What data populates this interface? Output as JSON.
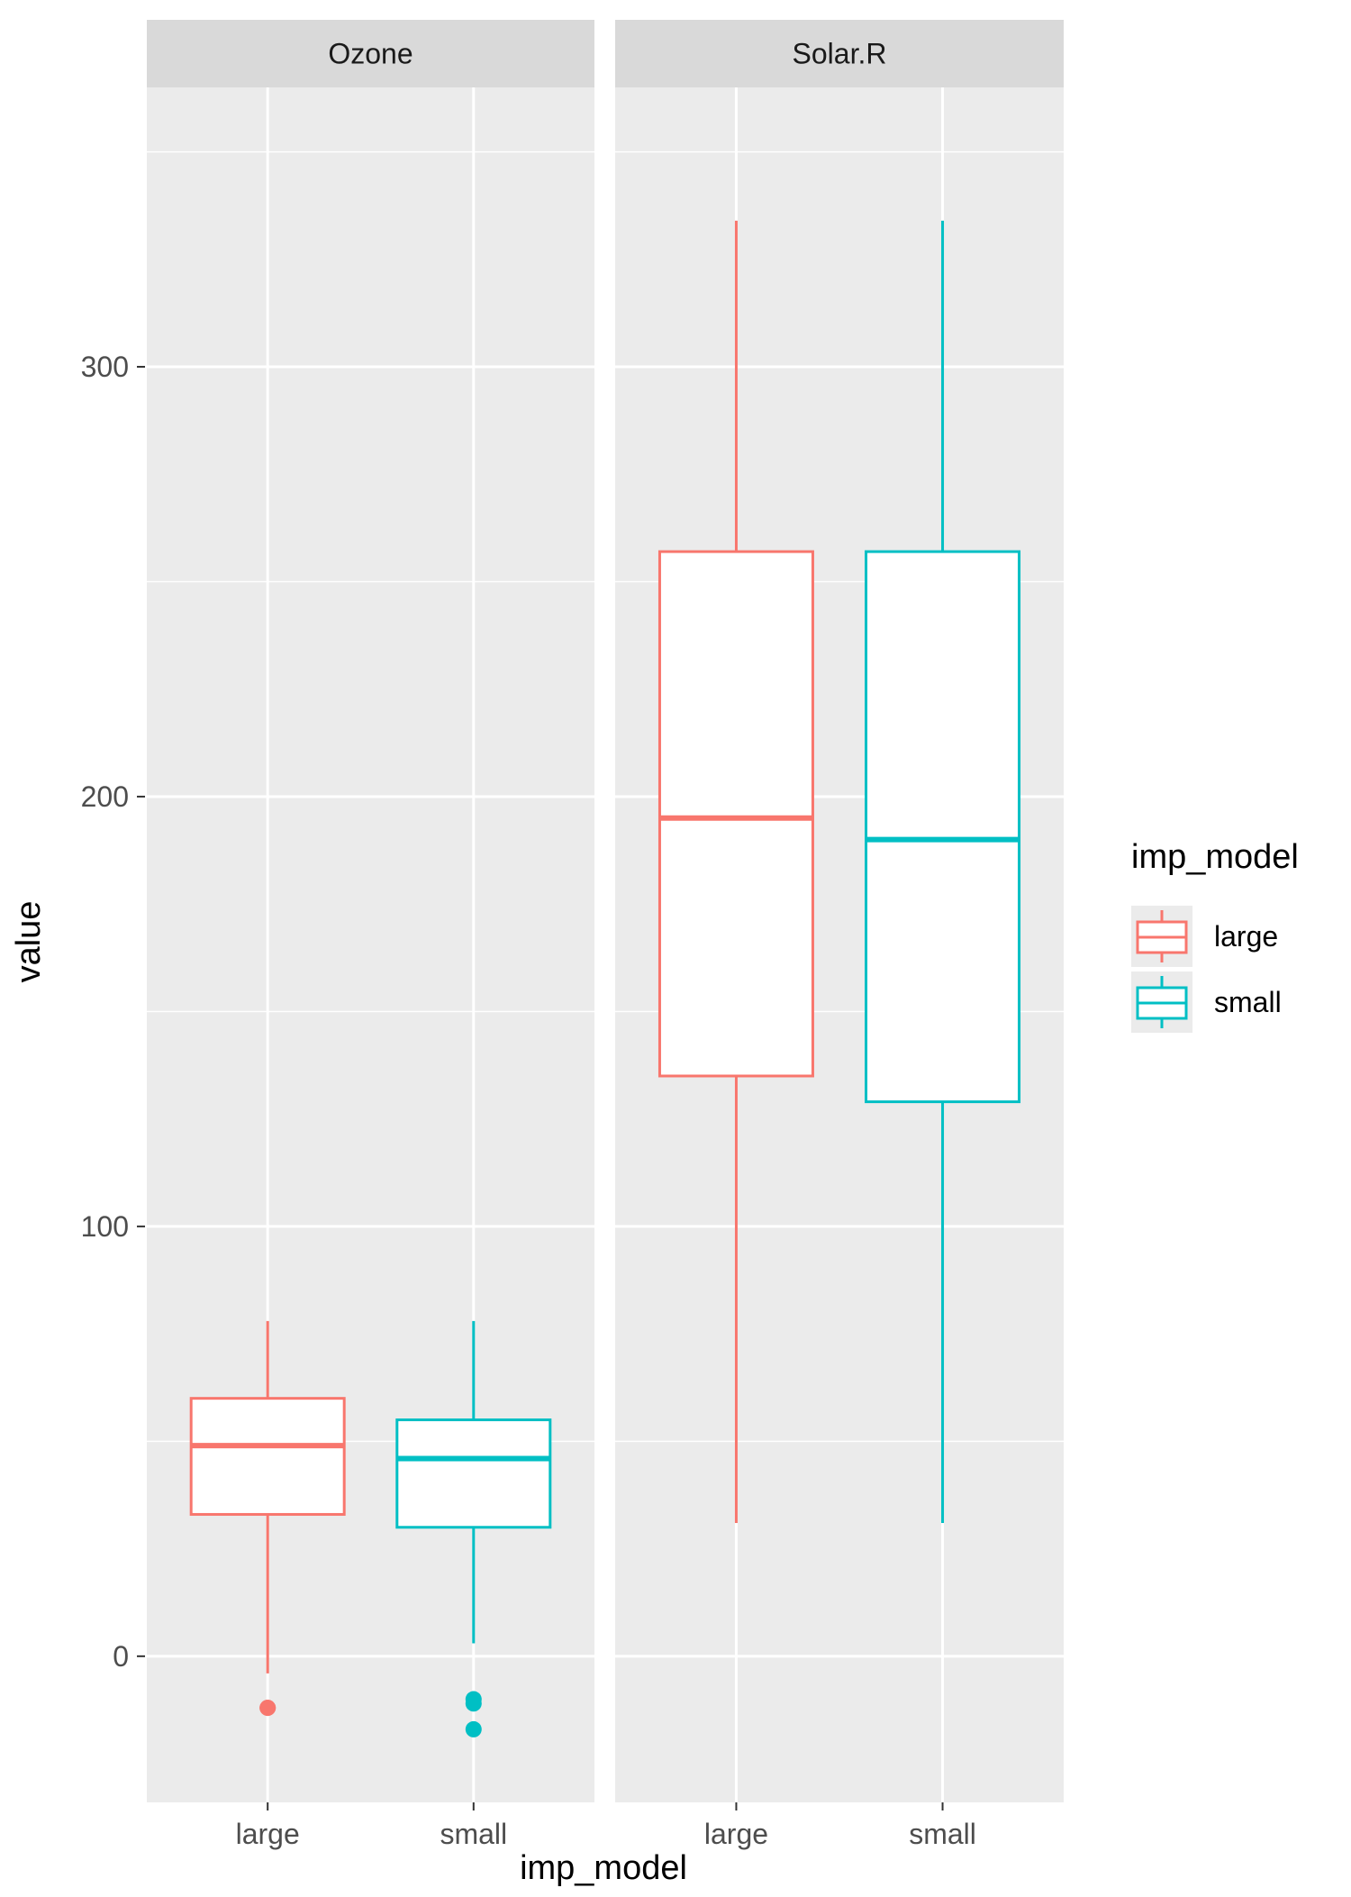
{
  "chart_data": {
    "type": "boxplot",
    "xlabel": "imp_model",
    "ylabel": "value",
    "ylim": [
      -34,
      365
    ],
    "y_ticks": [
      0,
      100,
      200,
      300
    ],
    "categories": [
      "large",
      "small"
    ],
    "legend": {
      "title": "imp_model",
      "placement": "right",
      "entries": [
        {
          "label": "large",
          "color": "#F8766D"
        },
        {
          "label": "small",
          "color": "#00BFC4"
        }
      ]
    },
    "panels": [
      {
        "title": "Ozone",
        "boxes": [
          {
            "category": "large",
            "color": "#F8766D",
            "whisker_low": -4,
            "q1": 33,
            "median": 49,
            "q3": 60,
            "whisker_high": 78,
            "outliers": [
              -12,
              -12
            ]
          },
          {
            "category": "small",
            "color": "#00BFC4",
            "whisker_low": 3,
            "q1": 30,
            "median": 46,
            "q3": 55,
            "whisker_high": 78,
            "outliers": [
              -10,
              -11,
              -17
            ]
          }
        ]
      },
      {
        "title": "Solar.R",
        "boxes": [
          {
            "category": "large",
            "color": "#F8766D",
            "whisker_low": 31,
            "q1": 135,
            "median": 195,
            "q3": 257,
            "whisker_high": 334,
            "outliers": []
          },
          {
            "category": "small",
            "color": "#00BFC4",
            "whisker_low": 31,
            "q1": 129,
            "median": 190,
            "q3": 257,
            "whisker_high": 334,
            "outliers": []
          }
        ]
      }
    ]
  }
}
